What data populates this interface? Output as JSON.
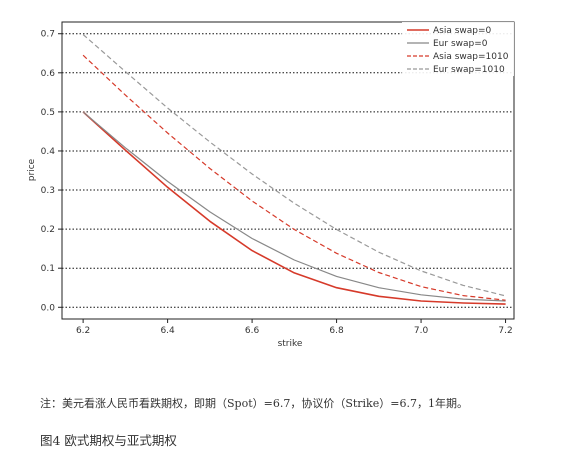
{
  "chart_data": {
    "type": "line",
    "xlabel": "strike",
    "ylabel": "price",
    "xlim": [
      6.15,
      7.22
    ],
    "ylim": [
      -0.03,
      0.73
    ],
    "x_ticks": [
      "6.2",
      "6.4",
      "6.6",
      "6.8",
      "7.0",
      "7.2"
    ],
    "y_ticks": [
      "0.0",
      "0.1",
      "0.2",
      "0.3",
      "0.4",
      "0.5",
      "0.6",
      "0.7"
    ],
    "grid": "horizontal dotted",
    "legend_position": "top-right",
    "x": [
      6.2,
      6.3,
      6.4,
      6.5,
      6.6,
      6.7,
      6.8,
      6.9,
      7.0,
      7.1,
      7.2
    ],
    "series": [
      {
        "name": "Asia swap=0",
        "color": "#d63a2a",
        "dash": "solid",
        "width": 1.6,
        "values": [
          0.5,
          0.402,
          0.307,
          0.22,
          0.145,
          0.088,
          0.05,
          0.028,
          0.016,
          0.011,
          0.008
        ]
      },
      {
        "name": "Eur swap=0",
        "color": "#888888",
        "dash": "solid",
        "width": 1.2,
        "values": [
          0.5,
          0.408,
          0.322,
          0.244,
          0.176,
          0.121,
          0.079,
          0.05,
          0.032,
          0.021,
          0.016
        ]
      },
      {
        "name": "Asia swap=1010",
        "color": "#d63a2a",
        "dash": "dashed",
        "width": 1.2,
        "values": [
          0.645,
          0.543,
          0.446,
          0.355,
          0.272,
          0.199,
          0.138,
          0.089,
          0.053,
          0.03,
          0.018
        ]
      },
      {
        "name": "Eur swap=1010",
        "color": "#999999",
        "dash": "dashed",
        "width": 1.2,
        "values": [
          0.698,
          0.603,
          0.51,
          0.423,
          0.341,
          0.266,
          0.199,
          0.141,
          0.093,
          0.056,
          0.029
        ]
      }
    ]
  },
  "note_text": "注：美元看涨人民币看跌期权，即期（Spot）=6.7，协议价（Strike）=6.7，1年期。",
  "figure_caption": "图4  欧式期权与亚式期权"
}
